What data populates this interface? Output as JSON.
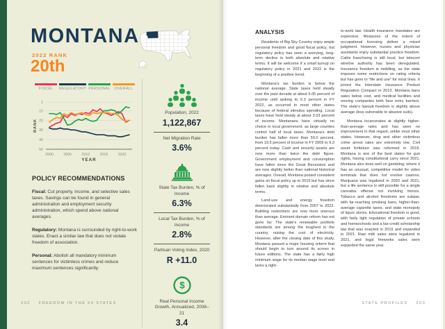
{
  "colors": {
    "page_bg": "#ECEEDA",
    "right_page_bg": "#FFFFFF",
    "sidebar_green": "#235E40",
    "navy": "#1C3A54",
    "orange": "#F6861F",
    "icon_green": "#2AA14C",
    "rule_gray": "#5C6055",
    "muted_gray": "#8D9287"
  },
  "left_page": {
    "title": "MONTANA",
    "rank_label": "2022 RANK",
    "rank_value": "20th",
    "map": {
      "highlighted_state": "Montana",
      "highlight_color": "#1C3A54"
    },
    "policy": {
      "heading": "POLICY RECOMMENDATIONS",
      "items": [
        {
          "lead": "Fiscal:",
          "text": " Cut property, income, and selective sales taxes. Savings can be found in general administration and employment security administration, which spend above national averages."
        },
        {
          "lead": "Regulatory:",
          "text": " Montana is surrounded by right-to-work states. Enact a similar law that does not violate freedom of association."
        },
        {
          "lead": "Personal:",
          "text": " Abolish all mandatory minimum sentences for victimless crimes and reduce maximum sentences significantly."
        }
      ]
    },
    "stats": [
      {
        "icon": "population-icon",
        "label": "Population, 2022",
        "value": "1,122,867"
      },
      {
        "label": "Net Migration Rate",
        "value": "3.6%"
      },
      {
        "icon": "capitol-icon",
        "label": "State Tax Burden, % of Income",
        "value": "6.3%"
      },
      {
        "label": "Local Tax Burden, % of Income",
        "value": "2.8%"
      },
      {
        "label": "Partisan Voting Index, 2020",
        "value": "R +11.0"
      },
      {
        "icon": "dollar-icon",
        "label": "Real Personal Income Growth, Annualized, 2008–21",
        "value": "3.4"
      }
    ],
    "footer": {
      "page_number": "202",
      "book_title": "FREEDOM IN THE 50 STATES"
    }
  },
  "right_page": {
    "heading": "ANALYSIS",
    "column1": [
      "Residents of Big Sky Country enjoy ample personal freedom and good fiscal policy, but regulatory policy has seen a worrying, long-term decline in both absolute and relative terms. It will be welcome if a small turnup on regulatory policy in 2021 and 2022 is the beginning of a positive trend.",
      "Montana's tax burden is below the national average. State taxes held steady over the past decade at about 5.05 percent of income until spiking to 6.3 percent in FY 2022, as occurred in most other states because of federal stimulus spending. Local taxes have held steady at about 3.03 percent of income. Montanans have virtually no choice in local government, as large counties control half of local taxes. Montana's debt burden has fallen more than 50.0 percent, from 19.5 percent of income in FY 2009 to 9.3 percent today. Cash and security assets are now more than twice the debt figure. Government employment and consumption have fallen since the Great Recession and are now slightly better than national historical averages. Overall, Montana posted consistent gains on fiscal policy up to 2019 but has since fallen back slightly in relative and absolute terms.",
      "Land-use and energy freedom deteriorated substantially from 2007 to 2022. Building restrictions are now more onerous than average. Eminent domain reform has not gone far. The state's renewable portfolio standards are among the toughest in the country, raising the cost of electricity. However, after the closing date of this study, Montana passed a major housing reform that should begin to turn around its scores in future editions. The state has a fairly high minimum wage for its median wage level and lacks a right-"
    ],
    "column2": [
      "to-work law. Health insurance mandates are expensive. Measures of the extent of occupational licensing deliver a mixed judgment. However, nurses and physician assistants enjoy substantial practice freedom. Cable franchising is still local, but telecom wireline authority has been deregulated. Insurance freedom is middling, as the state imposes some restrictions on rating criteria but has gone to “file and use” for most lines. It joined the Interstate Insurance Product Regulation Compact in 2013. Montana bans sales below cost, and medical facilities and moving companies both face entry barriers. The state's lawsuit freedom is slightly above average (less vulnerable to abusive suits).",
      "Montana incarcerates at slightly higher-than-average rates and has seen no improvement in that regard, unlike most other states. However, drug and other victimless crime arrest rates are extremely low. Civil asset forfeiture was reformed in 2015. Montana is one of the best states for gun rights, having constitutional carry since 2021. Montana also does well on gambling, where it has an unusual, competitive model for video terminals that does not involve casinos. Marijuana was legalized in 2020 and 2021, but a life sentence is still possible for a single cannabis offense not involving minors. Tobacco and alcohol freedoms are subpar, with far-reaching smoking bans, higher-than-average cigarette taxes, and state monopoly of liquor stores. Educational freedom is good, with fairly light regulation of private schools and homeschools and a tax-credit scholarship law that was enacted in 2015 and expanded in 2021. Raw milk sales were legalized in 2021, and legal fireworks sales were expanded the same year."
    ],
    "footer": {
      "section": "STATE PROFILES",
      "page_number": "203"
    }
  },
  "chart_data": {
    "type": "line",
    "title": "Montana freedom rankings over time",
    "xlabel": "YEAR",
    "ylabel": "RANK",
    "x": [
      2000,
      2001,
      2002,
      2003,
      2004,
      2005,
      2006,
      2007,
      2008,
      2009,
      2010,
      2011,
      2012,
      2013,
      2014,
      2015,
      2016,
      2017,
      2018,
      2019,
      2020,
      2021,
      2022
    ],
    "xticks": [
      2000,
      2005,
      2010,
      2015,
      2020
    ],
    "yticks": [
      1,
      10,
      20,
      30,
      40,
      50
    ],
    "ylim": [
      1,
      50
    ],
    "y_axis_inverted": true,
    "legend_position": "top",
    "series": [
      {
        "name": "FISCAL",
        "color": "#E9345C",
        "values": [
          27,
          25,
          23,
          22,
          15,
          17,
          13,
          15,
          13,
          14,
          12,
          13,
          9,
          11,
          8,
          12,
          13,
          15,
          13,
          11,
          13,
          22,
          20
        ]
      },
      {
        "name": "REGULATORY",
        "color": "#1C3A54",
        "values": [
          28,
          29,
          29,
          28,
          29,
          29,
          30,
          30,
          31,
          32,
          32,
          33,
          34,
          35,
          35,
          35,
          36,
          36,
          36,
          37,
          37,
          36,
          35
        ]
      },
      {
        "name": "PERSONAL",
        "color": "#2AA14C",
        "values": [
          13,
          13,
          14,
          12,
          18,
          25,
          24,
          21,
          19,
          20,
          18,
          20,
          21,
          20,
          15,
          10,
          10,
          9,
          10,
          13,
          10,
          6,
          7
        ]
      },
      {
        "name": "OVERALL",
        "color": "#F7941E",
        "values": [
          22,
          19,
          17,
          18,
          13,
          15,
          12,
          14,
          13,
          12,
          14,
          15,
          12,
          13,
          12,
          12,
          12,
          13,
          13,
          15,
          19,
          21,
          20
        ]
      }
    ]
  }
}
